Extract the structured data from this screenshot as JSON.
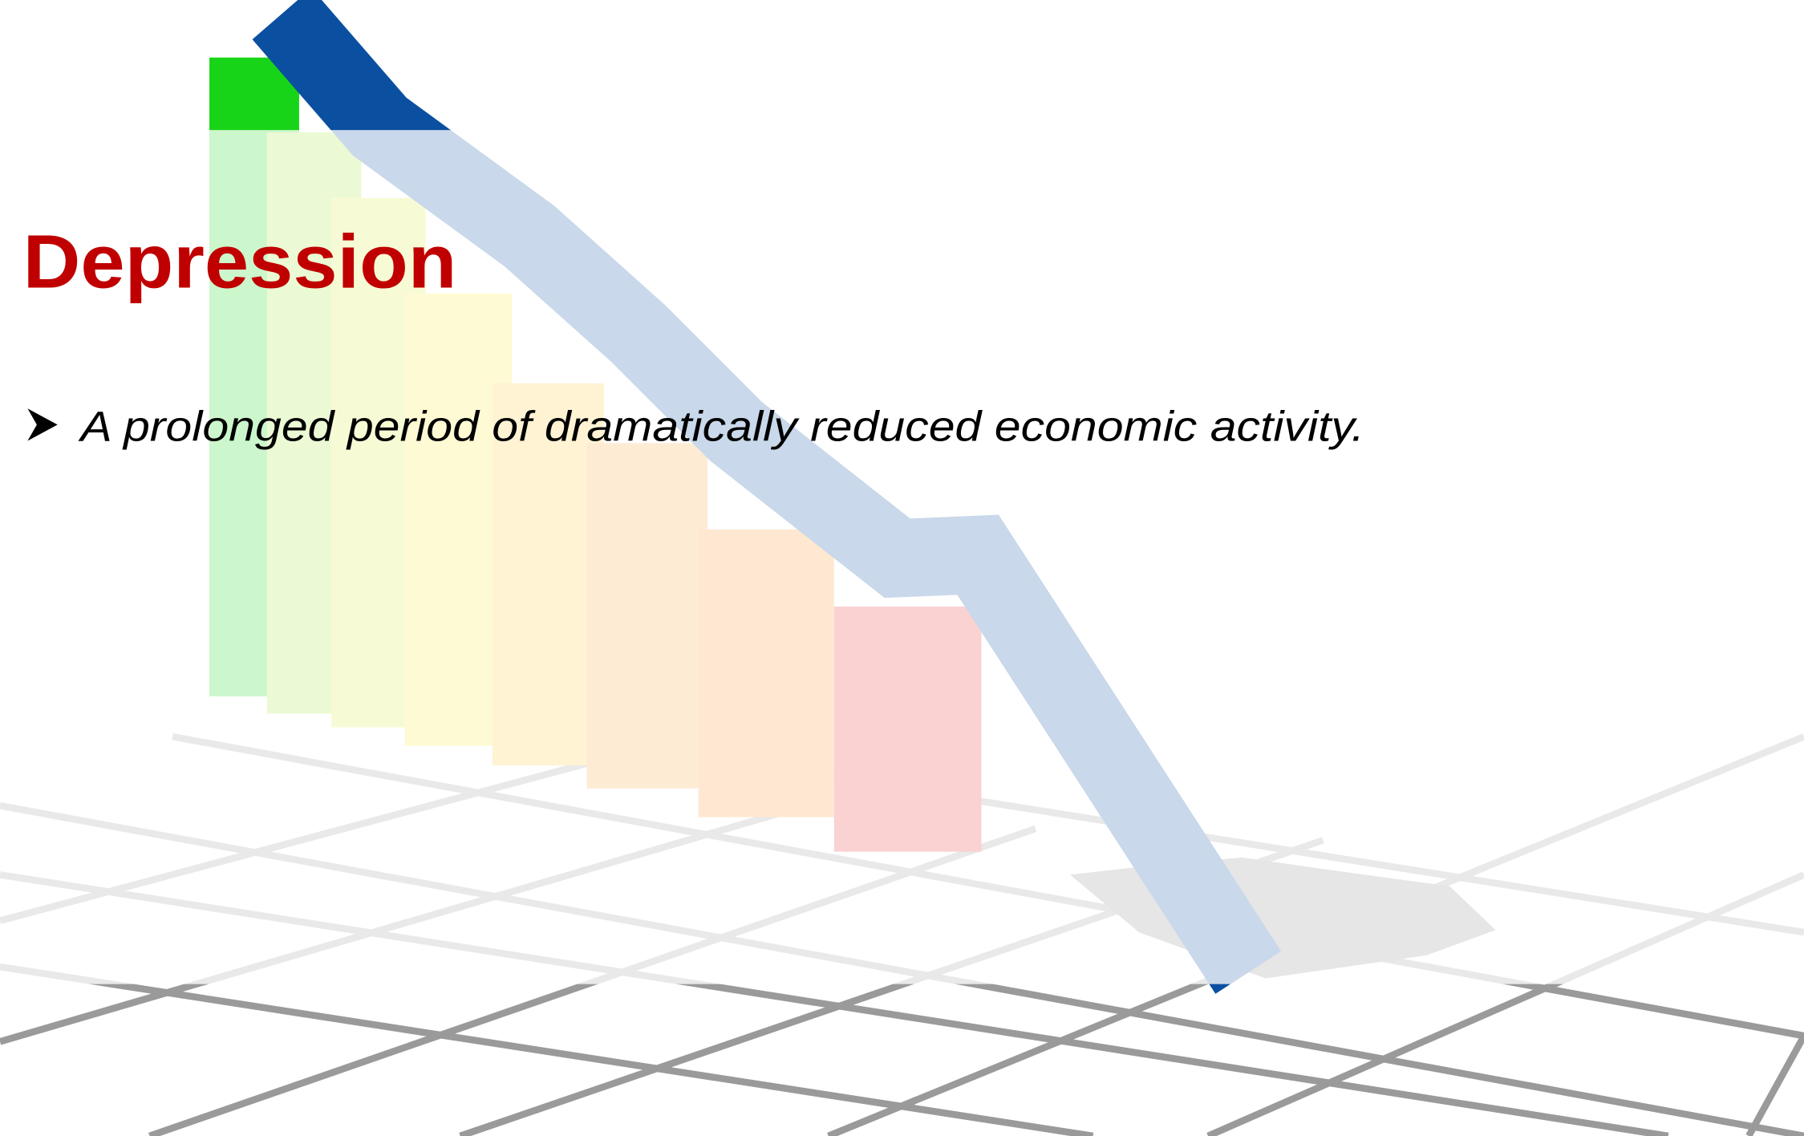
{
  "slide": {
    "title": "Depression",
    "bullets": [
      "A prolonged period of dramatically reduced economic activity."
    ]
  }
}
